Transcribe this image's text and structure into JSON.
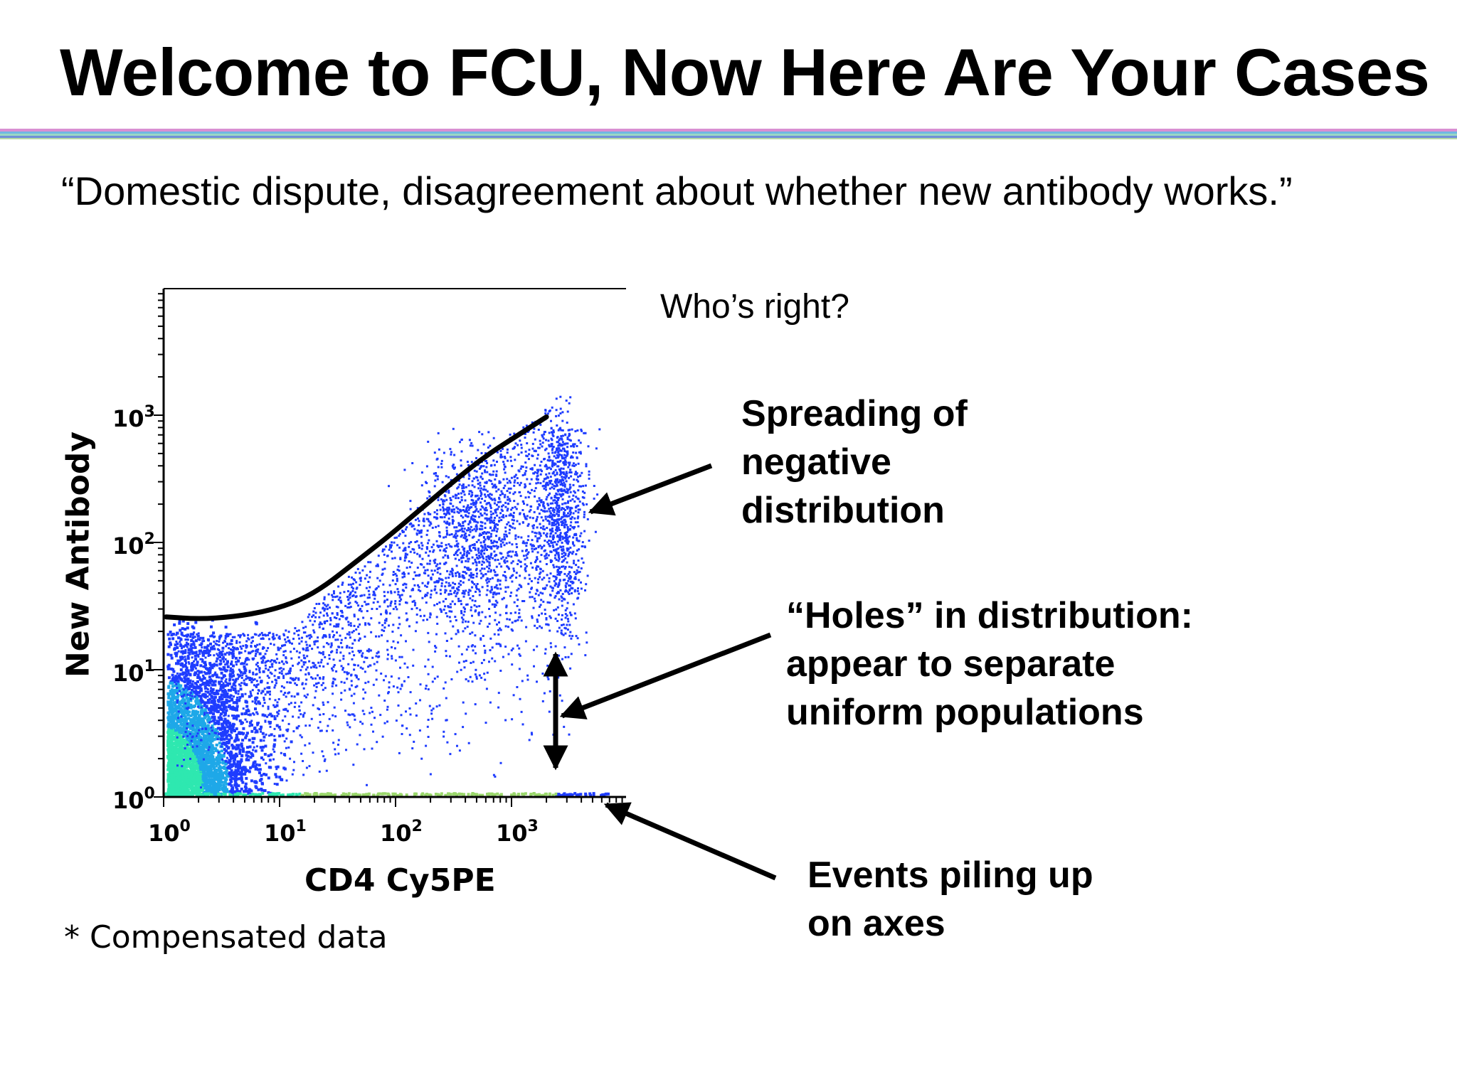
{
  "slide": {
    "title": "Welcome to FCU, Now Here Are Your Cases",
    "quote": "“Domestic dispute, disagreement about whether new antibody works.”",
    "question": "Who’s right?",
    "footnote": "* Compensated data",
    "annotations": {
      "spreading": [
        "Spreading of",
        "negative",
        "distribution"
      ],
      "holes": [
        "“Holes” in distribution:",
        "appear to separate",
        "uniform populations"
      ],
      "piling": [
        "Events piling up",
        "on axes"
      ]
    }
  },
  "chart_data": {
    "type": "scatter",
    "xlabel": "CD4 Cy5PE",
    "ylabel": "New Antibody",
    "xscale": "log",
    "yscale": "log",
    "xlim": [
      1,
      10000
    ],
    "ylim": [
      1,
      10000
    ],
    "xticks": [
      {
        "base": "10",
        "exp": "0",
        "value": 1
      },
      {
        "base": "10",
        "exp": "1",
        "value": 10
      },
      {
        "base": "10",
        "exp": "2",
        "value": 100
      },
      {
        "base": "10",
        "exp": "3",
        "value": 1000
      }
    ],
    "yticks": [
      {
        "base": "10",
        "exp": "0",
        "value": 1
      },
      {
        "base": "10",
        "exp": "1",
        "value": 10
      },
      {
        "base": "10",
        "exp": "2",
        "value": 100
      },
      {
        "base": "10",
        "exp": "3",
        "value": 1000
      }
    ],
    "spread_curve": [
      {
        "x": 1.05,
        "y": 26
      },
      {
        "x": 2,
        "y": 25
      },
      {
        "x": 4,
        "y": 26
      },
      {
        "x": 8,
        "y": 29
      },
      {
        "x": 15,
        "y": 35
      },
      {
        "x": 25,
        "y": 46
      },
      {
        "x": 45,
        "y": 70
      },
      {
        "x": 80,
        "y": 105
      },
      {
        "x": 150,
        "y": 170
      },
      {
        "x": 300,
        "y": 290
      },
      {
        "x": 600,
        "y": 480
      },
      {
        "x": 1200,
        "y": 720
      },
      {
        "x": 2000,
        "y": 970
      }
    ],
    "colors": {
      "density_low": "#1e3cff",
      "density_mid": "#1ea8e8",
      "density_high": "#2ee8b0",
      "curve": "#000000"
    }
  }
}
